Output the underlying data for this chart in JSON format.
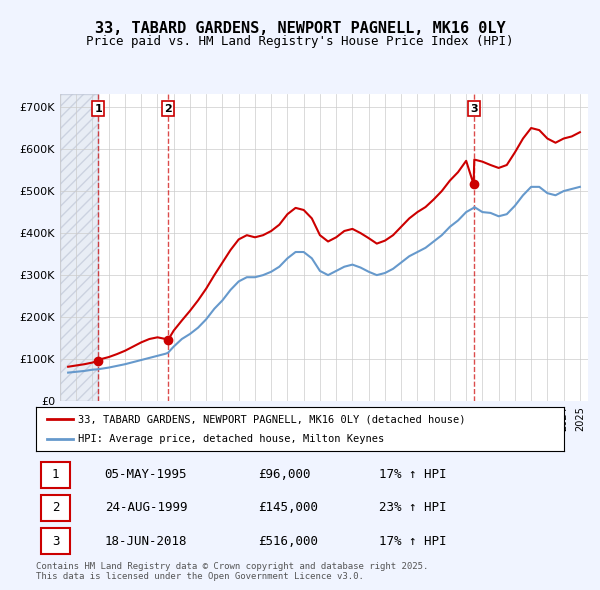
{
  "title": "33, TABARD GARDENS, NEWPORT PAGNELL, MK16 0LY",
  "subtitle": "Price paid vs. HM Land Registry's House Price Index (HPI)",
  "legend_line1": "33, TABARD GARDENS, NEWPORT PAGNELL, MK16 0LY (detached house)",
  "legend_line2": "HPI: Average price, detached house, Milton Keynes",
  "footer": "Contains HM Land Registry data © Crown copyright and database right 2025.\nThis data is licensed under the Open Government Licence v3.0.",
  "sales": [
    {
      "num": 1,
      "date": "05-MAY-1995",
      "price": 96000,
      "pct": "17%",
      "year": 1995.35
    },
    {
      "num": 2,
      "date": "24-AUG-1999",
      "price": 145000,
      "pct": "23%",
      "year": 1999.64
    },
    {
      "num": 3,
      "date": "18-JUN-2018",
      "price": 516000,
      "pct": "17%",
      "year": 2018.46
    }
  ],
  "ylim": [
    0,
    730000
  ],
  "xlim": [
    1993,
    2025.5
  ],
  "yticks": [
    0,
    100000,
    200000,
    300000,
    400000,
    500000,
    600000,
    700000
  ],
  "ytick_labels": [
    "£0",
    "£100K",
    "£200K",
    "£300K",
    "£400K",
    "£500K",
    "£600K",
    "£700K"
  ],
  "red_color": "#cc0000",
  "blue_color": "#6699cc",
  "hpi_data_x": [
    1993.5,
    1994,
    1994.5,
    1995,
    1995.35,
    1995.5,
    1996,
    1996.5,
    1997,
    1997.5,
    1998,
    1998.5,
    1999,
    1999.5,
    1999.64,
    2000,
    2000.5,
    2001,
    2001.5,
    2002,
    2002.5,
    2003,
    2003.5,
    2004,
    2004.5,
    2005,
    2005.5,
    2006,
    2006.5,
    2007,
    2007.5,
    2008,
    2008.5,
    2009,
    2009.5,
    2010,
    2010.5,
    2011,
    2011.5,
    2012,
    2012.5,
    2013,
    2013.5,
    2014,
    2014.5,
    2015,
    2015.5,
    2016,
    2016.5,
    2017,
    2017.5,
    2018,
    2018.46,
    2018.5,
    2019,
    2019.5,
    2020,
    2020.5,
    2021,
    2021.5,
    2022,
    2022.5,
    2023,
    2023.5,
    2024,
    2024.5,
    2025
  ],
  "hpi_data_y": [
    68000,
    70000,
    72000,
    75000,
    76000,
    77000,
    80000,
    84000,
    88000,
    93000,
    98000,
    103000,
    108000,
    113000,
    115000,
    130000,
    148000,
    160000,
    175000,
    195000,
    220000,
    240000,
    265000,
    285000,
    295000,
    295000,
    300000,
    308000,
    320000,
    340000,
    355000,
    355000,
    340000,
    310000,
    300000,
    310000,
    320000,
    325000,
    318000,
    308000,
    300000,
    305000,
    315000,
    330000,
    345000,
    355000,
    365000,
    380000,
    395000,
    415000,
    430000,
    450000,
    460000,
    462000,
    450000,
    448000,
    440000,
    445000,
    465000,
    490000,
    510000,
    510000,
    495000,
    490000,
    500000,
    505000,
    510000
  ],
  "prop_data_x": [
    1993.5,
    1994,
    1994.5,
    1995,
    1995.35,
    1995.5,
    1996,
    1996.5,
    1997,
    1997.5,
    1998,
    1998.5,
    1999,
    1999.5,
    1999.64,
    2000,
    2000.5,
    2001,
    2001.5,
    2002,
    2002.5,
    2003,
    2003.5,
    2004,
    2004.5,
    2005,
    2005.5,
    2006,
    2006.5,
    2007,
    2007.5,
    2008,
    2008.5,
    2009,
    2009.5,
    2010,
    2010.5,
    2011,
    2011.5,
    2012,
    2012.5,
    2013,
    2013.5,
    2014,
    2014.5,
    2015,
    2015.5,
    2016,
    2016.5,
    2017,
    2017.5,
    2018,
    2018.46,
    2018.5,
    2019,
    2019.5,
    2020,
    2020.5,
    2021,
    2021.5,
    2022,
    2022.5,
    2023,
    2023.5,
    2024,
    2024.5,
    2025
  ],
  "prop_data_y": [
    82000,
    85000,
    88000,
    92000,
    96000,
    100000,
    105000,
    112000,
    120000,
    130000,
    140000,
    148000,
    152000,
    148000,
    145000,
    168000,
    192000,
    215000,
    240000,
    268000,
    300000,
    330000,
    360000,
    385000,
    395000,
    390000,
    395000,
    405000,
    420000,
    445000,
    460000,
    455000,
    435000,
    395000,
    380000,
    390000,
    405000,
    410000,
    400000,
    388000,
    375000,
    382000,
    395000,
    415000,
    435000,
    450000,
    462000,
    480000,
    500000,
    525000,
    545000,
    572000,
    516000,
    575000,
    570000,
    562000,
    555000,
    562000,
    592000,
    625000,
    650000,
    645000,
    625000,
    615000,
    625000,
    630000,
    640000
  ],
  "bg_color": "#f0f4ff",
  "plot_bg": "#ffffff",
  "grid_color": "#cccccc",
  "hatch_color": "#d0d8e8"
}
